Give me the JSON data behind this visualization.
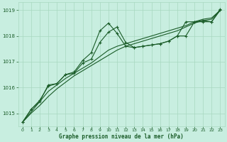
{
  "title": "Graphe pression niveau de la mer (hPa)",
  "background_color": "#c8eee0",
  "grid_color": "#a8d8c0",
  "line_color": "#1a5c28",
  "x_hours": [
    0,
    1,
    2,
    3,
    4,
    5,
    6,
    7,
    8,
    9,
    10,
    11,
    12,
    13,
    14,
    15,
    16,
    17,
    18,
    19,
    20,
    21,
    22,
    23
  ],
  "series_marked1": [
    1014.65,
    1015.15,
    1015.45,
    1016.1,
    1016.15,
    1016.5,
    1016.6,
    1017.05,
    1017.35,
    1018.2,
    1018.5,
    1018.1,
    1017.6,
    1017.55,
    1017.6,
    1017.65,
    1017.7,
    1017.8,
    1018.0,
    1018.55,
    1018.55,
    1018.6,
    1018.55,
    1019.0
  ],
  "series_marked2": [
    1014.65,
    1015.15,
    1015.5,
    1016.05,
    1016.15,
    1016.5,
    1016.55,
    1016.95,
    1017.1,
    1017.75,
    1018.15,
    1018.35,
    1017.75,
    1017.55,
    1017.6,
    1017.65,
    1017.7,
    1017.8,
    1018.0,
    1018.0,
    1018.55,
    1018.55,
    1018.55,
    1019.05
  ],
  "series_trend1": [
    1014.65,
    1015.05,
    1015.45,
    1015.85,
    1016.1,
    1016.35,
    1016.55,
    1016.75,
    1016.95,
    1017.2,
    1017.45,
    1017.6,
    1017.7,
    1017.8,
    1017.9,
    1018.0,
    1018.1,
    1018.2,
    1018.3,
    1018.4,
    1018.55,
    1018.65,
    1018.7,
    1019.0
  ],
  "series_trend2": [
    1014.65,
    1015.0,
    1015.3,
    1015.65,
    1015.95,
    1016.2,
    1016.45,
    1016.65,
    1016.85,
    1017.05,
    1017.25,
    1017.45,
    1017.6,
    1017.7,
    1017.8,
    1017.9,
    1018.0,
    1018.1,
    1018.2,
    1018.35,
    1018.5,
    1018.6,
    1018.65,
    1019.0
  ],
  "ylim": [
    1014.5,
    1019.3
  ],
  "yticks": [
    1015,
    1016,
    1017,
    1018,
    1019
  ],
  "xlim": [
    -0.5,
    23.5
  ],
  "xticks": [
    0,
    1,
    2,
    3,
    4,
    5,
    6,
    7,
    8,
    9,
    10,
    11,
    12,
    13,
    14,
    15,
    16,
    17,
    18,
    19,
    20,
    21,
    22,
    23
  ]
}
